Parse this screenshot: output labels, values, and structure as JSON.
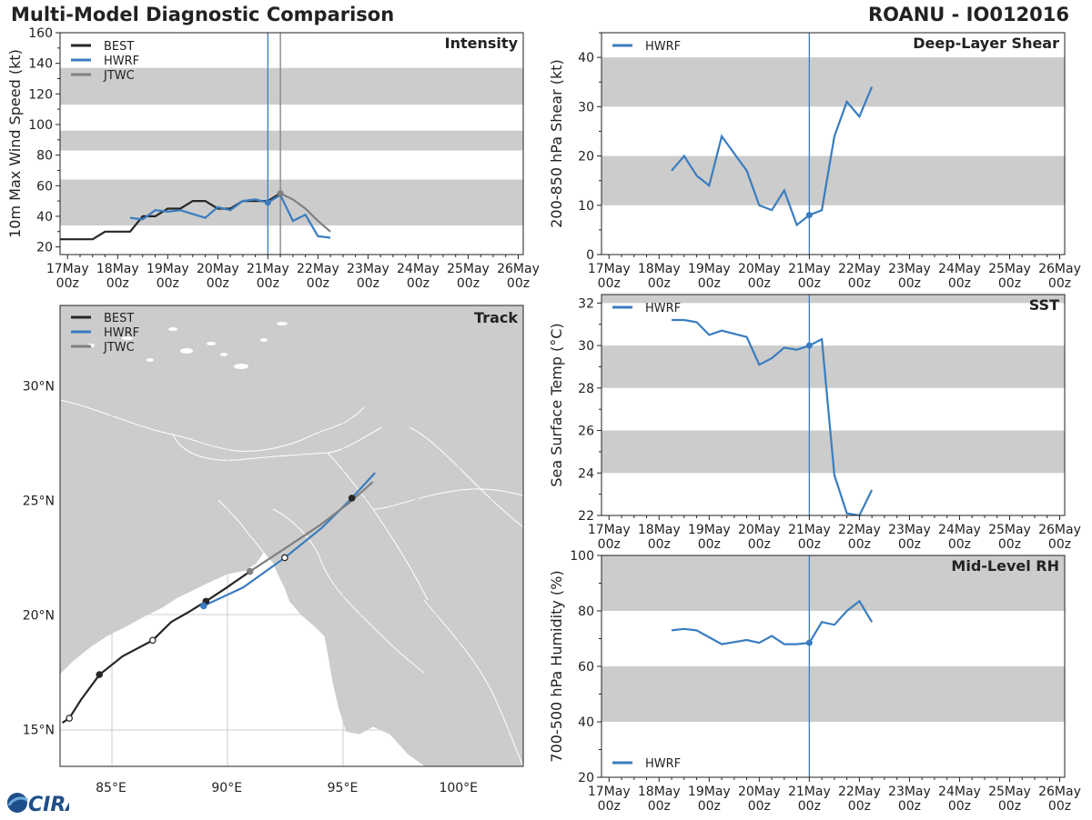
{
  "header": {
    "title": "Multi-Model Diagnostic Comparison",
    "storm": "ROANU - IO012016"
  },
  "logo_text": "CIRA",
  "colors": {
    "best": "#262626",
    "hwrf": "#3a7dbf",
    "jtwc": "#808080",
    "band": "#cccccc",
    "land": "#cccccc",
    "grid": "#bbbbbb"
  },
  "time_axis": {
    "day_labels": [
      "17May",
      "18May",
      "19May",
      "20May",
      "21May",
      "22May",
      "23May",
      "24May",
      "25May",
      "26May"
    ],
    "hour_label": "00z",
    "first_day": 17
  },
  "chart_data": [
    {
      "id": "intensity",
      "type": "line",
      "title": "Intensity",
      "ylabel": "10m Max Wind Speed (kt)",
      "xlim": [
        16.85,
        26.1
      ],
      "ylim": [
        15,
        160
      ],
      "yticks": [
        20,
        40,
        60,
        80,
        100,
        120,
        140,
        160
      ],
      "bands": [
        [
          34,
          64
        ],
        [
          83,
          96
        ],
        [
          113,
          137
        ]
      ],
      "vlines": [
        {
          "x": 21.0,
          "series": "HWRF"
        },
        {
          "x": 21.25,
          "series": "JTWC"
        }
      ],
      "legend": [
        "BEST",
        "HWRF",
        "JTWC"
      ],
      "series": [
        {
          "name": "BEST",
          "x": [
            16.75,
            17.0,
            17.25,
            17.5,
            17.75,
            18.0,
            18.25,
            18.5,
            18.75,
            19.0,
            19.25,
            19.5,
            19.75,
            20.0,
            20.25,
            20.5,
            20.75,
            21.0,
            21.25
          ],
          "y": [
            25,
            25,
            25,
            25,
            30,
            30,
            30,
            40,
            40,
            45,
            45,
            50,
            50,
            45,
            45,
            50,
            50,
            50,
            55
          ]
        },
        {
          "name": "HWRF",
          "x": [
            18.25,
            18.5,
            18.75,
            19.0,
            19.25,
            19.75,
            20.0,
            20.25,
            20.5,
            20.75,
            21.0,
            21.25,
            21.5,
            21.75,
            22.0,
            22.25
          ],
          "y": [
            39,
            38,
            44,
            43,
            44,
            39,
            46,
            44,
            50,
            51,
            49,
            54,
            37,
            41,
            27,
            26
          ]
        },
        {
          "name": "JTWC",
          "x": [
            21.25,
            21.5,
            21.75,
            22.0,
            22.25
          ],
          "y": [
            55,
            51,
            45,
            37,
            30
          ]
        }
      ],
      "markers": [
        {
          "series": "HWRF",
          "x": 21.0,
          "y": 49
        },
        {
          "series": "JTWC",
          "x": 21.25,
          "y": 55
        }
      ]
    },
    {
      "id": "shear",
      "type": "line",
      "title": "Deep-Layer Shear",
      "ylabel": "200-850 hPa Shear (kt)",
      "xlim": [
        16.85,
        26.1
      ],
      "ylim": [
        0,
        45
      ],
      "yticks": [
        0,
        10,
        20,
        30,
        40
      ],
      "bands": [
        [
          10,
          20
        ],
        [
          30,
          40
        ]
      ],
      "vlines": [
        {
          "x": 21.0,
          "series": "HWRF"
        }
      ],
      "legend": [
        "HWRF"
      ],
      "series": [
        {
          "name": "HWRF",
          "x": [
            18.25,
            18.5,
            18.75,
            19.0,
            19.25,
            19.75,
            20.0,
            20.25,
            20.5,
            20.75,
            21.0,
            21.25,
            21.5,
            21.75,
            22.0,
            22.25
          ],
          "y": [
            17,
            20,
            16,
            14,
            24,
            17,
            10,
            9,
            13,
            6,
            8,
            9,
            24,
            31,
            28,
            34
          ]
        }
      ],
      "markers": [
        {
          "series": "HWRF",
          "x": 21.0,
          "y": 8
        }
      ]
    },
    {
      "id": "sst",
      "type": "line",
      "title": "SST",
      "ylabel": "Sea Surface Temp (°C)",
      "xlim": [
        16.85,
        26.1
      ],
      "ylim": [
        22,
        32.4
      ],
      "yticks": [
        22,
        24,
        26,
        28,
        30,
        32
      ],
      "bands": [
        [
          24,
          26
        ],
        [
          28,
          30
        ],
        [
          32,
          34
        ]
      ],
      "vlines": [
        {
          "x": 21.0,
          "series": "HWRF"
        }
      ],
      "legend": [
        "HWRF"
      ],
      "series": [
        {
          "name": "HWRF",
          "x": [
            18.25,
            18.5,
            18.75,
            19.0,
            19.25,
            19.75,
            20.0,
            20.25,
            20.5,
            20.75,
            21.0,
            21.25,
            21.5,
            21.75,
            22.0,
            22.25
          ],
          "y": [
            31.2,
            31.2,
            31.1,
            30.5,
            30.7,
            30.4,
            29.1,
            29.4,
            29.9,
            29.8,
            30.0,
            30.3,
            23.9,
            22.1,
            21.9,
            23.2
          ]
        }
      ],
      "markers": [
        {
          "series": "HWRF",
          "x": 21.0,
          "y": 30.0
        }
      ]
    },
    {
      "id": "rh",
      "type": "line",
      "title": "Mid-Level RH",
      "ylabel": "700-500 hPa Humidity (%)",
      "xlim": [
        16.85,
        26.1
      ],
      "ylim": [
        20,
        100
      ],
      "yticks": [
        20,
        40,
        60,
        80,
        100
      ],
      "bands": [
        [
          40,
          60
        ],
        [
          80,
          100
        ]
      ],
      "vlines": [
        {
          "x": 21.0,
          "series": "HWRF"
        }
      ],
      "legend": [
        "HWRF"
      ],
      "legend_pos": "bottom-left",
      "series": [
        {
          "name": "HWRF",
          "x": [
            18.25,
            18.5,
            18.75,
            19.0,
            19.25,
            19.75,
            20.0,
            20.25,
            20.5,
            20.75,
            21.0,
            21.25,
            21.5,
            21.75,
            22.0,
            22.25
          ],
          "y": [
            73,
            73.5,
            73,
            70.5,
            68,
            69.5,
            68.5,
            71,
            68,
            68,
            68.5,
            76,
            75,
            80,
            83.5,
            76
          ]
        }
      ],
      "markers": [
        {
          "series": "HWRF",
          "x": 21.0,
          "y": 68.5
        }
      ]
    },
    {
      "id": "track",
      "type": "map",
      "title": "Track",
      "xlim": [
        82.8,
        102.8
      ],
      "ylim": [
        13.4,
        33.5
      ],
      "lon_ticks": [
        85,
        90,
        95,
        100
      ],
      "lon_labels": [
        "85°E",
        "90°E",
        "95°E",
        "100°E"
      ],
      "lat_ticks": [
        15,
        20,
        25,
        30
      ],
      "lat_labels": [
        "15°N",
        "20°N",
        "25°N",
        "30°N"
      ],
      "legend": [
        "BEST",
        "HWRF",
        "JTWC"
      ],
      "series": [
        {
          "name": "BEST",
          "lon": [
            82.9,
            83.2,
            83.7,
            84.5,
            85.5,
            86.8,
            87.6,
            88.3,
            89.1,
            90.0,
            91.0
          ],
          "lat": [
            15.3,
            15.5,
            16.3,
            17.4,
            18.2,
            18.9,
            19.7,
            20.1,
            20.6,
            21.2,
            21.9
          ]
        },
        {
          "name": "HWRF",
          "lon": [
            89.0,
            90.7,
            92.5,
            94.1,
            95.4,
            96.4
          ],
          "lat": [
            20.4,
            21.2,
            22.5,
            23.8,
            25.1,
            26.2
          ]
        },
        {
          "name": "JTWC",
          "lon": [
            91.0,
            92.5,
            94.0,
            95.3,
            96.3
          ],
          "lat": [
            21.9,
            22.9,
            23.9,
            24.9,
            25.8
          ]
        }
      ],
      "markers": [
        {
          "series": "BEST",
          "lon": 83.2,
          "lat": 15.5,
          "filled": false
        },
        {
          "series": "BEST",
          "lon": 84.5,
          "lat": 17.4,
          "filled": true
        },
        {
          "series": "BEST",
          "lon": 86.8,
          "lat": 18.9,
          "filled": false
        },
        {
          "series": "BEST",
          "lon": 89.1,
          "lat": 20.6,
          "filled": true
        },
        {
          "series": "HWRF",
          "lon": 89.0,
          "lat": 20.4,
          "filled": true
        },
        {
          "series": "JTWC",
          "lon": 91.0,
          "lat": 21.9,
          "filled": true
        },
        {
          "series": "BEST",
          "lon": 92.5,
          "lat": 22.5,
          "filled": false
        },
        {
          "series": "BEST",
          "lon": 95.4,
          "lat": 25.1,
          "filled": true
        }
      ]
    }
  ]
}
